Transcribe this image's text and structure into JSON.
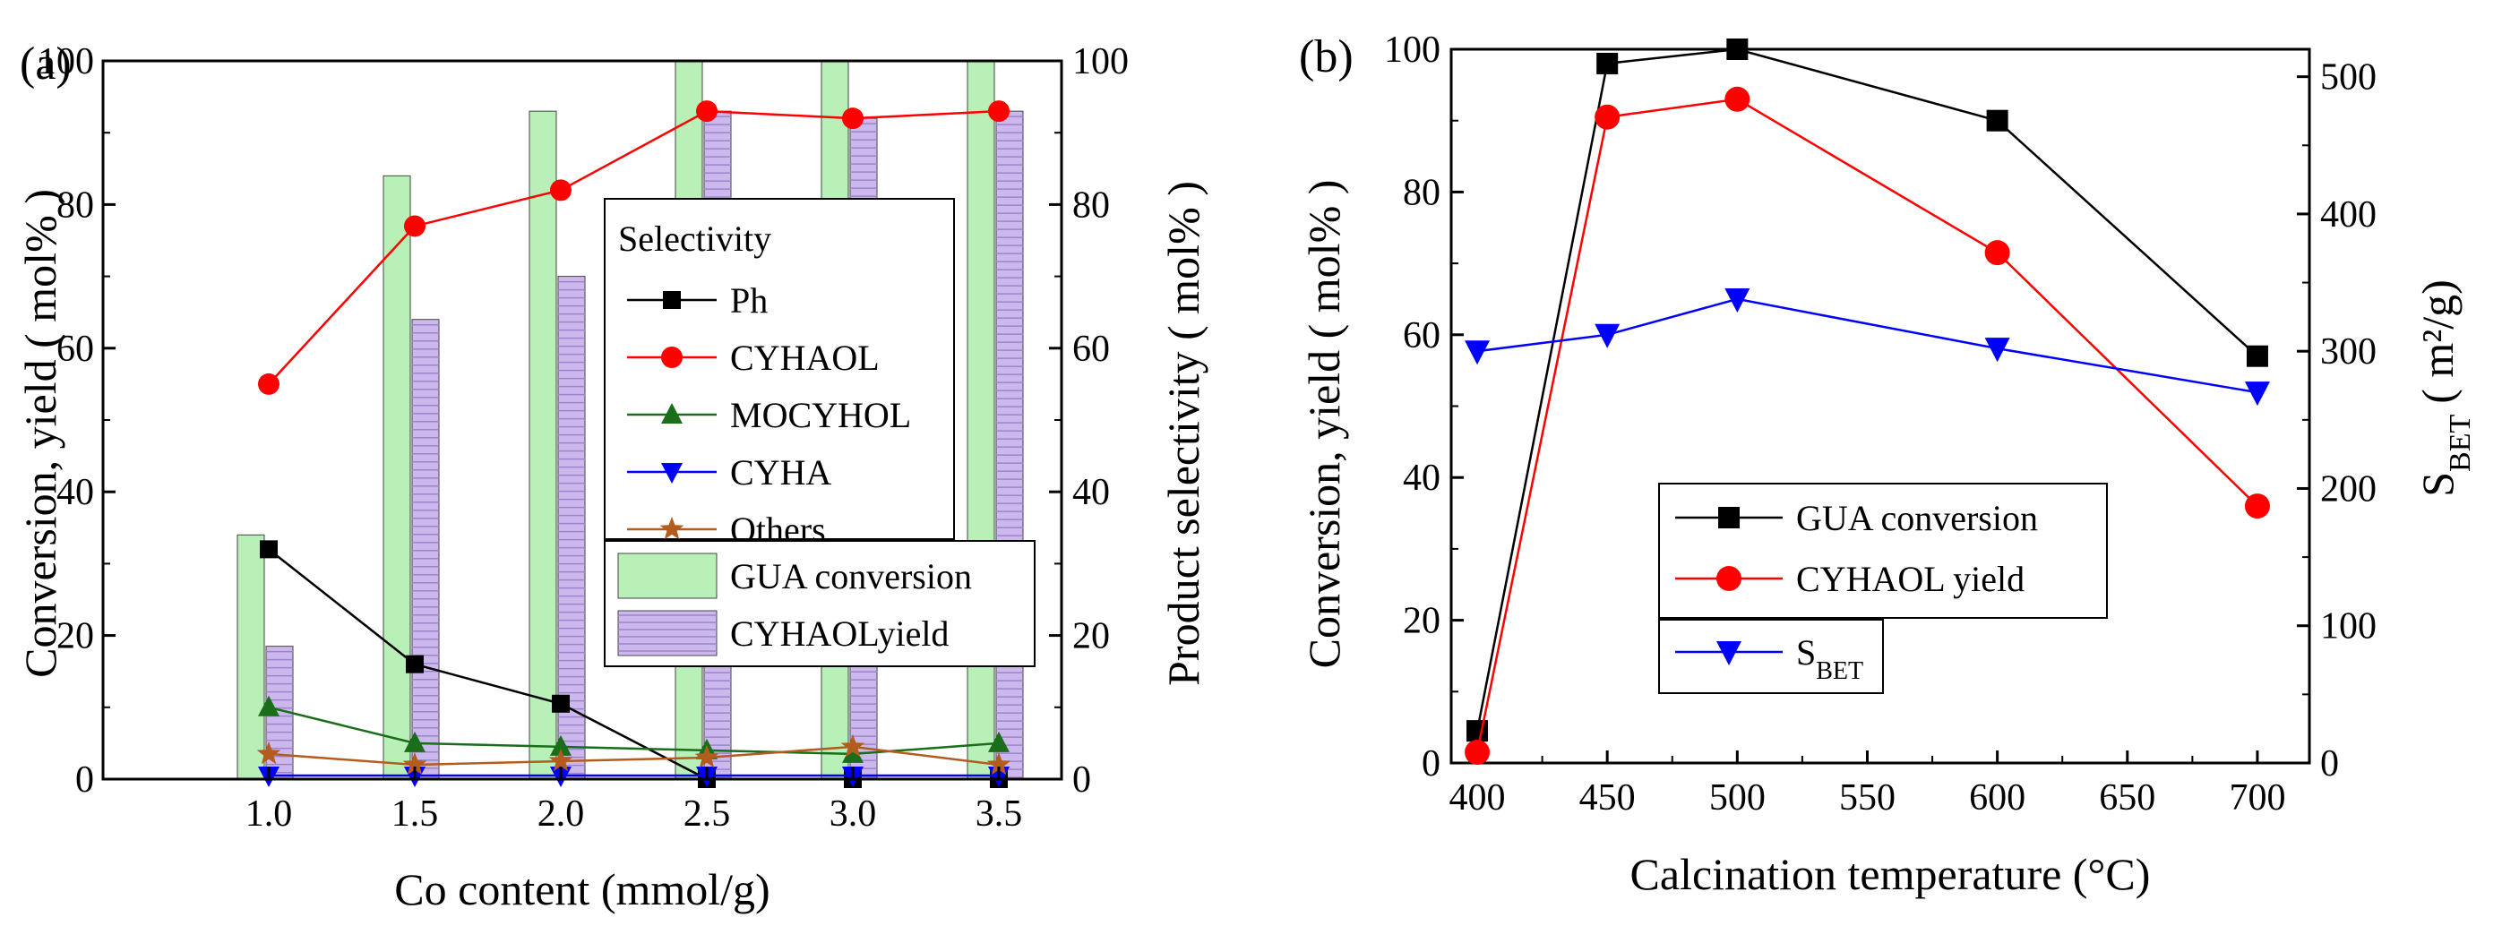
{
  "chart_data": [
    {
      "panel_label": "(a)",
      "type": "bar+line",
      "xlabel": "Co content (mmol/g)",
      "ylabel_left": "Conversion, yield ( mol% )",
      "ylabel_right": "Product selectivity ( mol% )",
      "categories": [
        "1.0",
        "1.5",
        "2.0",
        "2.5",
        "3.0",
        "3.5"
      ],
      "ylim": [
        0,
        100
      ],
      "yticks": [
        "0",
        "20",
        "40",
        "60",
        "80",
        "100"
      ],
      "bars": [
        {
          "name": "GUA conversion",
          "color": "#b8f0b8",
          "values": [
            34,
            84,
            93,
            100,
            100,
            100
          ]
        },
        {
          "name": "CYHAOLyield",
          "color": "#cdb8ee",
          "values": [
            18.5,
            64,
            70,
            93,
            92,
            93
          ]
        }
      ],
      "legend_title": "Selectivity",
      "series": [
        {
          "name": "Ph",
          "color": "#000000",
          "marker": "square",
          "values": [
            32,
            16,
            10.5,
            0,
            0,
            0
          ]
        },
        {
          "name": "CYHAOL",
          "color": "#ff0000",
          "marker": "circle",
          "values": [
            55,
            77,
            82,
            93,
            92,
            93
          ]
        },
        {
          "name": "MOCYHOL",
          "color": "#1a6e1a",
          "marker": "triangle-up",
          "values": [
            10,
            5,
            4.5,
            4,
            3.5,
            5
          ]
        },
        {
          "name": "CYHA",
          "color": "#0000ff",
          "marker": "triangle-down",
          "values": [
            0.5,
            0.5,
            0.5,
            0.5,
            0.5,
            0.5
          ]
        },
        {
          "name": "Others",
          "color": "#b35c1e",
          "marker": "star",
          "values": [
            3.5,
            2,
            2.5,
            3,
            4.5,
            2
          ]
        }
      ]
    },
    {
      "panel_label": "(b)",
      "type": "line",
      "xlabel": "Calcination  temperature (°C)",
      "ylabel_left": "Conversion, yield ( mol% )",
      "ylabel_right_main": "S",
      "ylabel_right_sub": "BET",
      "ylabel_right_unit": "( m²/g)",
      "x": [
        400,
        450,
        500,
        600,
        700
      ],
      "xlim": [
        390,
        720
      ],
      "xticks": [
        "400",
        "450",
        "500",
        "550",
        "600",
        "650",
        "700"
      ],
      "ylim_left": [
        0,
        100
      ],
      "yticks_left": [
        "0",
        "20",
        "40",
        "60",
        "80",
        "100"
      ],
      "ylim_right": [
        0,
        520
      ],
      "yticks_right": [
        "0",
        "100",
        "200",
        "300",
        "400",
        "500"
      ],
      "series": [
        {
          "name": "GUA conversion",
          "axis": "left",
          "color": "#000000",
          "marker": "square",
          "values": [
            4.5,
            98,
            100,
            90,
            57
          ]
        },
        {
          "name": "CYHAOL yield",
          "axis": "left",
          "color": "#ff0000",
          "marker": "circle",
          "values": [
            1.5,
            90.5,
            93,
            71.5,
            36
          ]
        },
        {
          "name": "S",
          "name_sub": "BET",
          "axis": "right",
          "color": "#0000ff",
          "marker": "triangle-down",
          "values": [
            300,
            312,
            338,
            302,
            270
          ]
        }
      ]
    }
  ]
}
